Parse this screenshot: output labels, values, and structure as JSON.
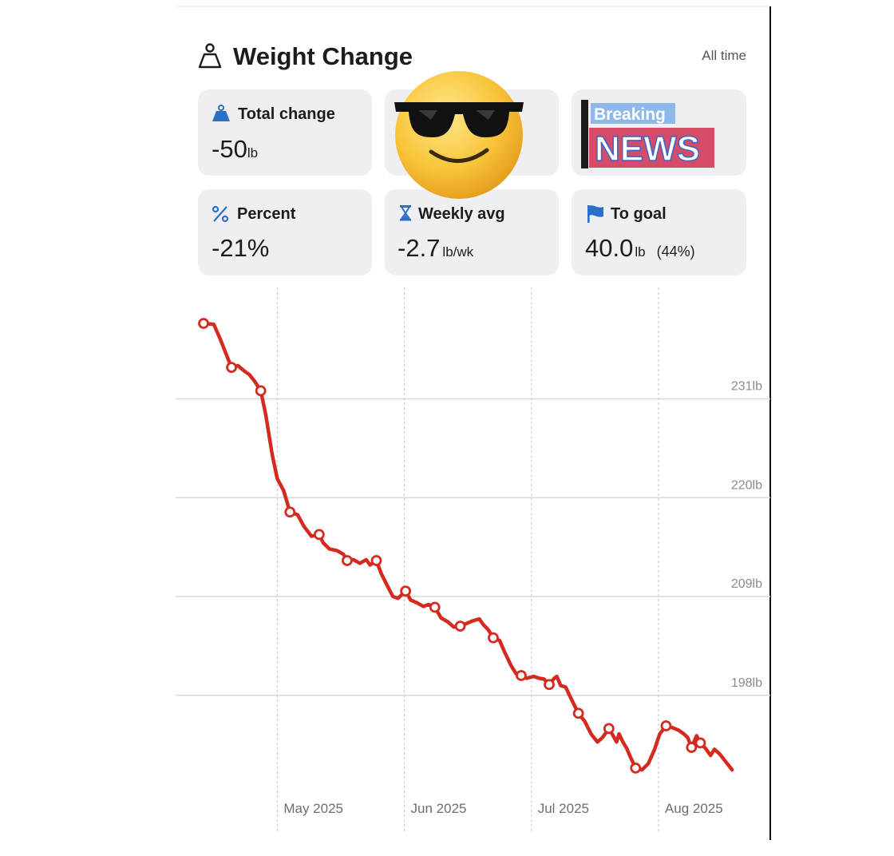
{
  "header": {
    "title": "Weight Change",
    "range": "All time"
  },
  "cards": {
    "total_change": {
      "label": "Total change",
      "value": "-50",
      "unit": "lb"
    },
    "percent": {
      "label": "Percent",
      "value": "-21%"
    },
    "weekly_avg": {
      "label": "Weekly avg",
      "value": "-2.7",
      "unit": "lb/wk"
    },
    "to_goal": {
      "label": "To goal",
      "value": "40.0",
      "unit": "lb",
      "note": "(44%)"
    },
    "overlay": {
      "line1": "Breaking",
      "line2": "NEWS"
    }
  },
  "chart_data": {
    "type": "line",
    "xlim": [
      4.2,
      8.88
    ],
    "xticks": [
      {
        "value": 5,
        "label": "May 2025"
      },
      {
        "value": 6,
        "label": "Jun 2025"
      },
      {
        "value": 7,
        "label": "Jul 2025"
      },
      {
        "value": 8,
        "label": "Aug 2025"
      }
    ],
    "ylim": [
      187.4,
      243.4
    ],
    "yticks": [
      {
        "value": 198,
        "label": "198lb"
      },
      {
        "value": 209,
        "label": "209lb"
      },
      {
        "value": 220,
        "label": "220lb"
      },
      {
        "value": 231,
        "label": "231lb"
      }
    ],
    "grid": true,
    "series": [
      {
        "color": "#d42a1f",
        "line": true,
        "marker": "none",
        "x": [
          4.42,
          4.5,
          4.55,
          4.6,
          4.64,
          4.69,
          4.74,
          4.78,
          4.82,
          4.87,
          4.91,
          4.96,
          5.0,
          5.05,
          5.1,
          5.16,
          5.21,
          5.27,
          5.33,
          5.36,
          5.41,
          5.47,
          5.52,
          5.55,
          5.6,
          5.65,
          5.7,
          5.73,
          5.78,
          5.82,
          5.87,
          5.91,
          5.95,
          6.01,
          6.05,
          6.1,
          6.15,
          6.19,
          6.24,
          6.29,
          6.34,
          6.39,
          6.44,
          6.49,
          6.54,
          6.59,
          6.62,
          6.66,
          6.7,
          6.75,
          6.79,
          6.84,
          6.88,
          6.92,
          6.96,
          7.02,
          7.06,
          7.1,
          7.14,
          7.18,
          7.2,
          7.23,
          7.27,
          7.31,
          7.37,
          7.42,
          7.47,
          7.52,
          7.56,
          7.61,
          7.64,
          7.67,
          7.69,
          7.72,
          7.75,
          7.78,
          7.82,
          7.87,
          7.92,
          7.97,
          8.01,
          8.06,
          8.11,
          8.16,
          8.2,
          8.23,
          8.26,
          8.3,
          8.33,
          8.37,
          8.41,
          8.44,
          8.48,
          8.53,
          8.58
        ],
        "values": [
          239.4,
          239.3,
          237.7,
          235.9,
          234.5,
          234.7,
          234.1,
          233.7,
          233.0,
          231.9,
          229.2,
          224.8,
          222.1,
          220.8,
          218.4,
          218.1,
          216.8,
          215.7,
          215.9,
          215.0,
          214.3,
          214.1,
          213.7,
          213.0,
          213.1,
          212.7,
          213.1,
          212.5,
          213.0,
          211.5,
          210.1,
          209.0,
          208.8,
          209.6,
          208.6,
          208.3,
          207.9,
          208.1,
          207.8,
          206.6,
          206.2,
          205.6,
          205.7,
          206.0,
          206.3,
          206.5,
          205.9,
          205.3,
          204.4,
          204.1,
          202.8,
          201.3,
          200.4,
          200.2,
          199.9,
          200.1,
          199.9,
          199.8,
          199.2,
          199.9,
          200.1,
          199.1,
          198.9,
          197.7,
          196.0,
          195.1,
          193.7,
          192.8,
          193.3,
          194.3,
          193.6,
          192.8,
          193.7,
          192.8,
          192.1,
          191.1,
          189.9,
          189.7,
          190.4,
          192.0,
          193.7,
          194.6,
          194.4,
          194.1,
          193.7,
          193.3,
          192.2,
          193.5,
          192.7,
          192.1,
          191.3,
          192.0,
          191.5,
          190.6,
          189.7
        ]
      },
      {
        "color": "#d42a1f",
        "line": false,
        "marker": "circle",
        "x": [
          4.42,
          4.64,
          4.87,
          5.1,
          5.33,
          5.55,
          5.78,
          6.01,
          6.24,
          6.44,
          6.7,
          6.92,
          7.14,
          7.37,
          7.61,
          7.82,
          8.06,
          8.26,
          8.33
        ],
        "values": [
          239.4,
          234.5,
          231.9,
          218.4,
          215.9,
          213.0,
          213.0,
          209.6,
          207.8,
          205.7,
          204.4,
          200.2,
          199.2,
          196.0,
          194.3,
          189.9,
          194.6,
          192.2,
          192.7
        ]
      }
    ]
  }
}
